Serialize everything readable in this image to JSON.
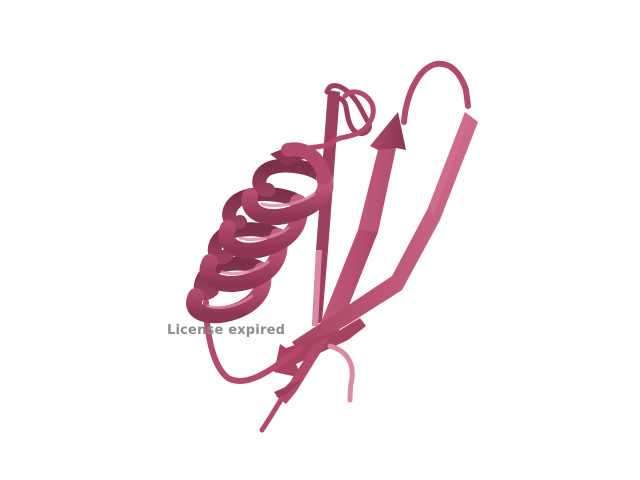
{
  "viewer": {
    "watermark": "License expired",
    "background_color": "#ffffff"
  },
  "molecule": {
    "representation": "cartoon",
    "secondary_structure": [
      "helix",
      "beta-strand",
      "beta-strand",
      "beta-strand",
      "loop"
    ],
    "color": "#b24a6c",
    "color_dark": "#7c2f48",
    "color_light": "#d9899e"
  }
}
